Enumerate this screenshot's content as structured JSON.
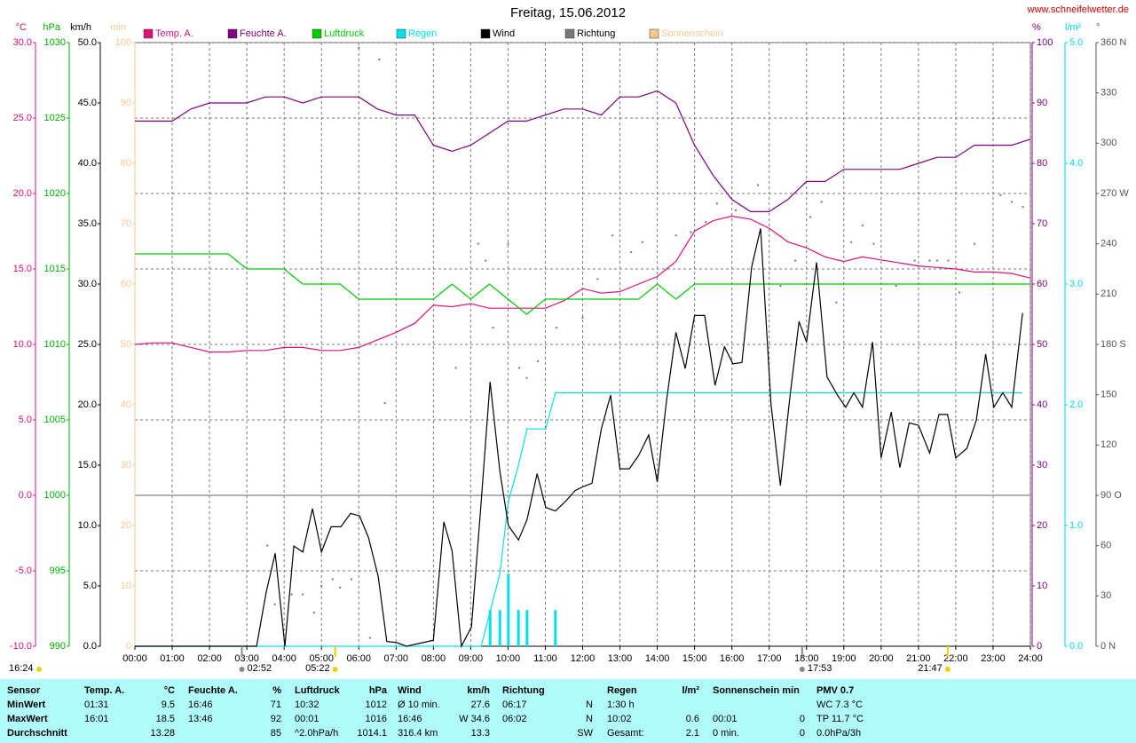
{
  "chart_data": {
    "type": "line",
    "title": "Freitag, 15.06.2012",
    "source": "www.schneifelwetter.de",
    "grid": true,
    "zero_line": true,
    "xlim": [
      0,
      24
    ],
    "xticks": [
      {
        "value": 0,
        "label": "00:00"
      },
      {
        "value": 1,
        "label": "01:00"
      },
      {
        "value": 2,
        "label": "02:00"
      },
      {
        "value": 3,
        "label": "03:00"
      },
      {
        "value": 4,
        "label": "04:00"
      },
      {
        "value": 5,
        "label": "05:00"
      },
      {
        "value": 6,
        "label": "06:00"
      },
      {
        "value": 7,
        "label": "07:00"
      },
      {
        "value": 8,
        "label": "08:00"
      },
      {
        "value": 9,
        "label": "09:00"
      },
      {
        "value": 10,
        "label": "10:00"
      },
      {
        "value": 11,
        "label": "11:00"
      },
      {
        "value": 12,
        "label": "12:00"
      },
      {
        "value": 13,
        "label": "13:00"
      },
      {
        "value": 14,
        "label": "14:00"
      },
      {
        "value": 15,
        "label": "15:00"
      },
      {
        "value": 16,
        "label": "16:00"
      },
      {
        "value": 17,
        "label": "17:00"
      },
      {
        "value": 18,
        "label": "18:00"
      },
      {
        "value": 19,
        "label": "19:00"
      },
      {
        "value": 20,
        "label": "20:00"
      },
      {
        "value": 21,
        "label": "21:00"
      },
      {
        "value": 22,
        "label": "22:00"
      },
      {
        "value": 23,
        "label": "23:00"
      },
      {
        "value": 24,
        "label": "24:00"
      }
    ],
    "axes": [
      {
        "unit": "°C",
        "side": "left",
        "color": "#e0107a",
        "ylim": [
          -10,
          30
        ],
        "yticks": [
          {
            "value": -10,
            "label": "-10.0"
          },
          {
            "value": -5,
            "label": "-5.0"
          },
          {
            "value": 0,
            "label": "0.0"
          },
          {
            "value": 5,
            "label": "5.0"
          },
          {
            "value": 10,
            "label": "10.0"
          },
          {
            "value": 15,
            "label": "15.0"
          },
          {
            "value": 20,
            "label": "20.0"
          },
          {
            "value": 25,
            "label": "25.0"
          },
          {
            "value": 30,
            "label": "30.0"
          }
        ]
      },
      {
        "unit": "hPa",
        "side": "left",
        "color": "#00b000",
        "ylim": [
          990,
          1030
        ],
        "yticks": [
          990,
          995,
          1000,
          1005,
          1010,
          1015,
          1020,
          1025,
          1030
        ]
      },
      {
        "unit": "km/h",
        "side": "left",
        "color": "#000000",
        "ylim": [
          0,
          50
        ],
        "yticks": [
          {
            "value": 0,
            "label": "0.0"
          },
          {
            "value": 5,
            "label": "5.0"
          },
          {
            "value": 10,
            "label": "10.0"
          },
          {
            "value": 15,
            "label": "15.0"
          },
          {
            "value": 20,
            "label": "20.0"
          },
          {
            "value": 25,
            "label": "25.0"
          },
          {
            "value": 30,
            "label": "30.0"
          },
          {
            "value": 35,
            "label": "35.0"
          },
          {
            "value": 40,
            "label": "40.0"
          },
          {
            "value": 45,
            "label": "45.0"
          },
          {
            "value": 50,
            "label": "50.0"
          }
        ]
      },
      {
        "unit": "min",
        "side": "left",
        "color": "#f5c890",
        "ylim": [
          0,
          100
        ],
        "yticks": [
          0,
          10,
          20,
          30,
          40,
          50,
          60,
          70,
          80,
          90,
          100
        ]
      },
      {
        "unit": "%",
        "side": "right",
        "color": "#800080",
        "ylim": [
          0,
          100
        ],
        "yticks": [
          0,
          10,
          20,
          30,
          40,
          50,
          60,
          70,
          80,
          90,
          100
        ]
      },
      {
        "unit": "l/m²",
        "side": "right",
        "color": "#00d8e0",
        "ylim": [
          0,
          5
        ],
        "yticks": [
          {
            "value": 0,
            "label": "0.0"
          },
          {
            "value": 1,
            "label": "1.0"
          },
          {
            "value": 2,
            "label": "2.0"
          },
          {
            "value": 3,
            "label": "3.0"
          },
          {
            "value": 4,
            "label": "4.0"
          },
          {
            "value": 5,
            "label": "5.0"
          }
        ]
      },
      {
        "unit": "°",
        "side": "right",
        "color": "#555555",
        "ylim": [
          0,
          360
        ],
        "yticks": [
          {
            "value": 0,
            "label": "0 N"
          },
          30,
          60,
          {
            "value": 90,
            "label": "90 O"
          },
          120,
          150,
          {
            "value": 180,
            "label": "180 S"
          },
          210,
          240,
          {
            "value": 270,
            "label": "270 W"
          },
          300,
          330,
          {
            "value": 360,
            "label": "360 N"
          }
        ]
      }
    ],
    "x": [
      0,
      0.5,
      1,
      1.5,
      2,
      2.5,
      3,
      3.5,
      4,
      4.5,
      5,
      5.5,
      6,
      6.5,
      7,
      7.5,
      8,
      8.5,
      9,
      9.5,
      10,
      10.5,
      11,
      11.5,
      12,
      12.5,
      13,
      13.5,
      14,
      14.5,
      15,
      15.5,
      16,
      16.5,
      17,
      17.5,
      18,
      18.5,
      19,
      19.5,
      20,
      20.5,
      21,
      21.5,
      22,
      22.5,
      23,
      23.5,
      24
    ],
    "series": [
      {
        "name": "Temp. A.",
        "type": "line",
        "axis": 0,
        "color": "#e0107a",
        "values": [
          10.0,
          10.1,
          10.1,
          9.8,
          9.5,
          9.5,
          9.6,
          9.6,
          9.8,
          9.8,
          9.6,
          9.6,
          9.8,
          10.3,
          10.8,
          11.4,
          12.6,
          12.5,
          12.7,
          12.4,
          12.4,
          12.4,
          12.4,
          12.9,
          13.7,
          13.4,
          13.5,
          14.0,
          14.5,
          15.5,
          17.5,
          18.2,
          18.5,
          18.3,
          17.7,
          16.8,
          16.4,
          15.8,
          15.5,
          15.8,
          15.6,
          15.4,
          15.2,
          15.1,
          15.0,
          14.8,
          14.8,
          14.7,
          14.4
        ]
      },
      {
        "name": "Feuchte A.",
        "type": "line",
        "axis": 4,
        "color": "#800080",
        "values": [
          87,
          87,
          87,
          89,
          90,
          90,
          90,
          91,
          91,
          90,
          91,
          91,
          91,
          89,
          88,
          88,
          83,
          82,
          83,
          85,
          87,
          87,
          88,
          89,
          89,
          88,
          91,
          91,
          92,
          90,
          83,
          78,
          74,
          72,
          72,
          74,
          77,
          77,
          79,
          79,
          79,
          79,
          80,
          81,
          81,
          83,
          83,
          83,
          84
        ]
      },
      {
        "name": "Luftdruck",
        "type": "line",
        "axis": 1,
        "color": "#00cc00",
        "values": [
          1016,
          1016,
          1016,
          1016,
          1016,
          1016,
          1015,
          1015,
          1015,
          1014,
          1014,
          1014,
          1013,
          1013,
          1013,
          1013,
          1013,
          1014,
          1013,
          1014,
          1013,
          1012,
          1013,
          1013,
          1013,
          1013,
          1013,
          1013,
          1014,
          1013,
          1014,
          1014,
          1014,
          1014,
          1014,
          1014,
          1014,
          1014,
          1014,
          1014,
          1014,
          1014,
          1014,
          1014,
          1014,
          1014,
          1014,
          1014,
          1014
        ]
      },
      {
        "name": "Regen",
        "type": "line",
        "axis": 5,
        "color": "#00e0e8",
        "x": [
          0,
          9.28,
          9.78,
          10.01,
          10.28,
          10.51,
          11.01,
          11.27,
          23.79
        ],
        "values": [
          0,
          0,
          0.6,
          1.2,
          1.5,
          1.8,
          1.8,
          2.1,
          2.1
        ],
        "bar_x": [
          9.52,
          9.78,
          10.01,
          10.28,
          10.51,
          11.27
        ],
        "bar_values": [
          0.3,
          0.3,
          0.6,
          0.3,
          0.3,
          0.3
        ]
      },
      {
        "name": "Wind",
        "type": "line",
        "axis": 2,
        "color": "#000000",
        "x": [
          0,
          3.26,
          3.52,
          3.76,
          4.02,
          4.26,
          4.5,
          4.76,
          5.0,
          5.26,
          5.52,
          5.78,
          6.02,
          6.26,
          6.52,
          6.75,
          7.02,
          7.28,
          8.0,
          8.28,
          8.5,
          8.75,
          9.02,
          9.27,
          9.52,
          9.78,
          10.01,
          10.28,
          10.51,
          10.78,
          11.01,
          11.27,
          11.54,
          11.8,
          12.0,
          12.25,
          12.5,
          12.75,
          13.0,
          13.25,
          13.5,
          13.77,
          14.0,
          14.25,
          14.5,
          14.75,
          15.0,
          15.27,
          15.55,
          15.8,
          16.03,
          16.27,
          16.53,
          16.77,
          17.05,
          17.3,
          17.55,
          17.8,
          18.0,
          18.27,
          18.55,
          18.85,
          19.05,
          19.27,
          19.5,
          19.77,
          20.0,
          20.27,
          20.5,
          20.75,
          21.0,
          21.3,
          21.55,
          21.78,
          22.0,
          22.3,
          22.55,
          22.8,
          23.02,
          23.26,
          23.5,
          23.79
        ],
        "values": [
          0,
          0,
          4.5,
          7.7,
          0,
          8.3,
          7.8,
          11.4,
          7.8,
          9.9,
          9.9,
          11.0,
          10.8,
          9.0,
          5.8,
          0.4,
          0.3,
          0,
          0.5,
          10.3,
          7.9,
          0,
          1.6,
          11.5,
          21.9,
          14.5,
          10.0,
          8.8,
          10.5,
          14.3,
          11.5,
          11.2,
          12.0,
          12.9,
          13.2,
          13.5,
          18.0,
          20.8,
          14.7,
          14.7,
          15.8,
          17.5,
          13.6,
          20.4,
          26.0,
          23.0,
          27.4,
          27.4,
          21.6,
          24.8,
          23.4,
          23.5,
          31.4,
          34.6,
          20.0,
          13.3,
          20.5,
          26.9,
          25.2,
          31.8,
          22.3,
          20.7,
          19.8,
          21.0,
          19.8,
          25.2,
          15.6,
          19.4,
          14.8,
          18.5,
          18.3,
          16.0,
          19.2,
          19.2,
          15.6,
          16.4,
          18.7,
          24.2,
          19.8,
          21.0,
          19.8,
          27.6
        ]
      },
      {
        "name": "Richtung",
        "type": "scatter",
        "axis": 6,
        "color": "#777777",
        "x": [
          3.55,
          3.75,
          4.2,
          4.5,
          4.8,
          5.0,
          5.3,
          5.5,
          5.8,
          6.0,
          6.3,
          6.55,
          6.7,
          8.6,
          9.2,
          9.4,
          9.6,
          10.0,
          10.3,
          10.5,
          10.8,
          11.3,
          12.0,
          12.4,
          12.8,
          13.3,
          13.6,
          14.5,
          14.9,
          15.3,
          15.6,
          16.1,
          16.7,
          17.3,
          17.7,
          18.1,
          18.4,
          18.8,
          19.2,
          19.5,
          19.8,
          20.4,
          20.9,
          21.3,
          21.5,
          21.8,
          22.1,
          22.5,
          23.2,
          23.5,
          23.8
        ],
        "values": [
          60,
          25,
          31,
          31,
          20,
          36,
          40,
          35,
          40,
          357,
          5,
          350,
          145,
          166,
          240,
          230,
          190,
          240,
          166,
          160,
          170,
          190,
          196,
          219,
          245,
          235,
          241,
          245,
          247,
          253,
          264,
          260,
          275,
          215,
          230,
          256,
          265,
          205,
          241,
          251,
          240,
          215,
          230,
          230,
          230,
          230,
          211,
          240,
          269,
          265,
          262
        ]
      },
      {
        "name": "Sonnenschein",
        "type": "line",
        "axis": 3,
        "color": "#f5c890",
        "x": [],
        "values": []
      }
    ],
    "astro_start": {
      "label": "16:24",
      "kind": "sun"
    },
    "astro_markers": [
      {
        "value": 2.867,
        "label": "02:52",
        "kind": "moon"
      },
      {
        "value": 5.367,
        "label": "05:22",
        "kind": "sun"
      },
      {
        "value": 17.883,
        "label": "17:53",
        "kind": "moon"
      },
      {
        "value": 21.783,
        "label": "21:47",
        "kind": "sun"
      }
    ]
  },
  "summary": {
    "header": {
      "label": "Sensor",
      "groups": [
        [
          "Temp. A.",
          "°C"
        ],
        [
          "Feuchte A.",
          "%"
        ],
        [
          "Luftdruck",
          "hPa"
        ],
        [
          "Wind",
          "km/h"
        ],
        [
          "Richtung"
        ],
        [
          "Regen",
          "l/m²"
        ],
        [
          "Sonnenschein min"
        ],
        [
          "PMV 0.7"
        ]
      ]
    },
    "rows": [
      {
        "label": "MinWert",
        "groups": [
          [
            "01:31",
            "9.5"
          ],
          [
            "16:46",
            "71"
          ],
          [
            "10:32",
            "1012"
          ],
          [
            "Ø 10 min.",
            "27.6"
          ],
          [
            "06:17",
            "N"
          ],
          [
            "1:30 h",
            null
          ],
          [
            null,
            null
          ],
          [
            "WC 7.3 °C"
          ]
        ]
      },
      {
        "label": "MaxWert",
        "groups": [
          [
            "16:01",
            "18.5"
          ],
          [
            "13:46",
            "92"
          ],
          [
            "00:01",
            "1016"
          ],
          [
            "16:46",
            "W 34.6"
          ],
          [
            "06:02",
            "N"
          ],
          [
            "10:02",
            "0.6"
          ],
          [
            "00:01",
            "0"
          ],
          [
            "TP 11.7 °C"
          ]
        ]
      },
      {
        "label": "Durchschnitt",
        "groups": [
          [
            null,
            "13.28"
          ],
          [
            null,
            "85"
          ],
          [
            "^2.0hPa/h",
            "1014.1"
          ],
          [
            "316.4 km",
            "13.3"
          ],
          [
            null,
            "SW"
          ],
          [
            "Gesamt:",
            "2.1"
          ],
          [
            "0 min.",
            "0"
          ],
          [
            "0.0hPa/3h"
          ]
        ]
      }
    ]
  }
}
